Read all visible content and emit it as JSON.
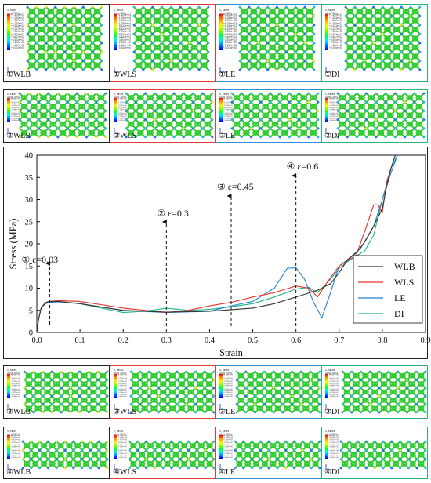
{
  "colors": {
    "WLB": "#333333",
    "WLS": "#e8342b",
    "LE": "#1f7fd1",
    "DI": "#1fb585",
    "frame_black": "#222222",
    "frame_red": "#e03a3a",
    "frame_blue": "#2f8fd6",
    "frame_green": "#29b37a",
    "lattice_green": "#33cc33"
  },
  "rows": [
    {
      "id": "row1",
      "marker": "①",
      "panels": [
        {
          "label": "①WLB",
          "frame": "black"
        },
        {
          "label": "①WLS",
          "frame": "red"
        },
        {
          "label": "①LE",
          "frame": "blue"
        },
        {
          "label": "①DI",
          "frame": "green"
        }
      ]
    },
    {
      "id": "row2",
      "marker": "②",
      "panels": [
        {
          "label": "②WLB",
          "frame": "black"
        },
        {
          "label": "②WLS",
          "frame": "red"
        },
        {
          "label": "②LE",
          "frame": "blue"
        },
        {
          "label": "②DI",
          "frame": "green"
        }
      ]
    },
    {
      "id": "row3",
      "marker": "③",
      "panels": [
        {
          "label": "③WLB",
          "frame": "black"
        },
        {
          "label": "③WLS",
          "frame": "red"
        },
        {
          "label": "③LE",
          "frame": "blue"
        },
        {
          "label": "③DI",
          "frame": "green"
        }
      ]
    },
    {
      "id": "row4",
      "marker": "④",
      "panels": [
        {
          "label": "④WLB",
          "frame": "black"
        },
        {
          "label": "④WLS",
          "frame": "red"
        },
        {
          "label": "④LE",
          "frame": "blue"
        },
        {
          "label": "④DI",
          "frame": "green"
        }
      ]
    }
  ],
  "legend_header": "S, Mises\n(Avg: 75%)",
  "legend_values": [
    "+1.400e+03",
    "+1.283e+03",
    "+1.167e+03",
    "+1.050e+03",
    "+9.333e+02",
    "+8.167e+02",
    "+7.000e+02",
    "+5.833e+02",
    "+4.667e+02",
    "+3.500e+02",
    "+2.333e+02",
    "+1.167e+02",
    "+0.000e+00"
  ],
  "chart_data": {
    "type": "line",
    "xlabel": "Strain",
    "ylabel": "Stress (MPa)",
    "xlim": [
      0,
      0.9
    ],
    "ylim": [
      0,
      40
    ],
    "xticks": [
      "0.0",
      "0.1",
      "0.2",
      "0.3",
      "0.4",
      "0.5",
      "0.6",
      "0.7",
      "0.8",
      "0.9"
    ],
    "yticks": [
      "0",
      "5",
      "10",
      "15",
      "20",
      "25",
      "30",
      "35",
      "40"
    ],
    "legend_position": "right-middle",
    "grid": false,
    "series": [
      {
        "name": "WLB",
        "x": [
          0,
          0.004,
          0.01,
          0.02,
          0.03,
          0.05,
          0.1,
          0.2,
          0.3,
          0.4,
          0.5,
          0.55,
          0.6,
          0.65,
          0.68,
          0.7,
          0.72,
          0.74,
          0.76,
          0.78,
          0.8,
          0.81,
          0.82,
          0.83
        ],
        "y": [
          0,
          3,
          5.5,
          6.7,
          7,
          7,
          6.5,
          5,
          4.6,
          4.8,
          5.5,
          6.5,
          8,
          9.5,
          11,
          13.5,
          16.5,
          18,
          20.5,
          24,
          28,
          33,
          37,
          40
        ]
      },
      {
        "name": "WLS",
        "x": [
          0,
          0.004,
          0.01,
          0.02,
          0.03,
          0.05,
          0.1,
          0.2,
          0.3,
          0.35,
          0.4,
          0.45,
          0.5,
          0.55,
          0.6,
          0.63,
          0.65,
          0.67,
          0.7,
          0.74,
          0.76,
          0.78,
          0.79,
          0.8,
          0.81,
          0.83
        ],
        "y": [
          0,
          3,
          5.5,
          6.8,
          7,
          7.2,
          7,
          5.5,
          4.5,
          5,
          6,
          6.8,
          8,
          9,
          10.5,
          10,
          8,
          11,
          15,
          17.5,
          23,
          28.8,
          28.8,
          27,
          34,
          40
        ]
      },
      {
        "name": "LE",
        "x": [
          0,
          0.004,
          0.01,
          0.02,
          0.03,
          0.05,
          0.1,
          0.2,
          0.3,
          0.4,
          0.45,
          0.5,
          0.55,
          0.58,
          0.6,
          0.62,
          0.64,
          0.66,
          0.68,
          0.7,
          0.72,
          0.75,
          0.78,
          0.8,
          0.82,
          0.835
        ],
        "y": [
          0,
          3,
          5.5,
          6.5,
          6.8,
          6.9,
          6.5,
          5,
          4.5,
          4.8,
          6,
          7,
          10,
          14.5,
          14.6,
          12,
          7,
          3.3,
          9,
          15,
          16.5,
          19,
          24,
          30,
          36,
          40
        ]
      },
      {
        "name": "DI",
        "x": [
          0,
          0.004,
          0.01,
          0.02,
          0.03,
          0.05,
          0.1,
          0.2,
          0.25,
          0.3,
          0.35,
          0.4,
          0.45,
          0.5,
          0.55,
          0.6,
          0.63,
          0.65,
          0.68,
          0.7,
          0.72,
          0.76,
          0.78,
          0.8,
          0.82,
          0.835
        ],
        "y": [
          0,
          3,
          5.5,
          6.6,
          6.9,
          7,
          6.5,
          4.5,
          4.8,
          5.5,
          5,
          5.2,
          5.8,
          6.5,
          8,
          9.8,
          10.2,
          9,
          12,
          14.5,
          16,
          18.5,
          22,
          30,
          37,
          40
        ]
      }
    ],
    "annotations": [
      {
        "text": "① ε=0.03",
        "x": 0.03,
        "y": 6.9
      },
      {
        "text": "② ε=0.3",
        "x": 0.3,
        "y": 4.5
      },
      {
        "text": "③ ε=0.45",
        "x": 0.45,
        "y": 6
      },
      {
        "text": "④ ε=0.6",
        "x": 0.6,
        "y": 7.8
      }
    ]
  }
}
